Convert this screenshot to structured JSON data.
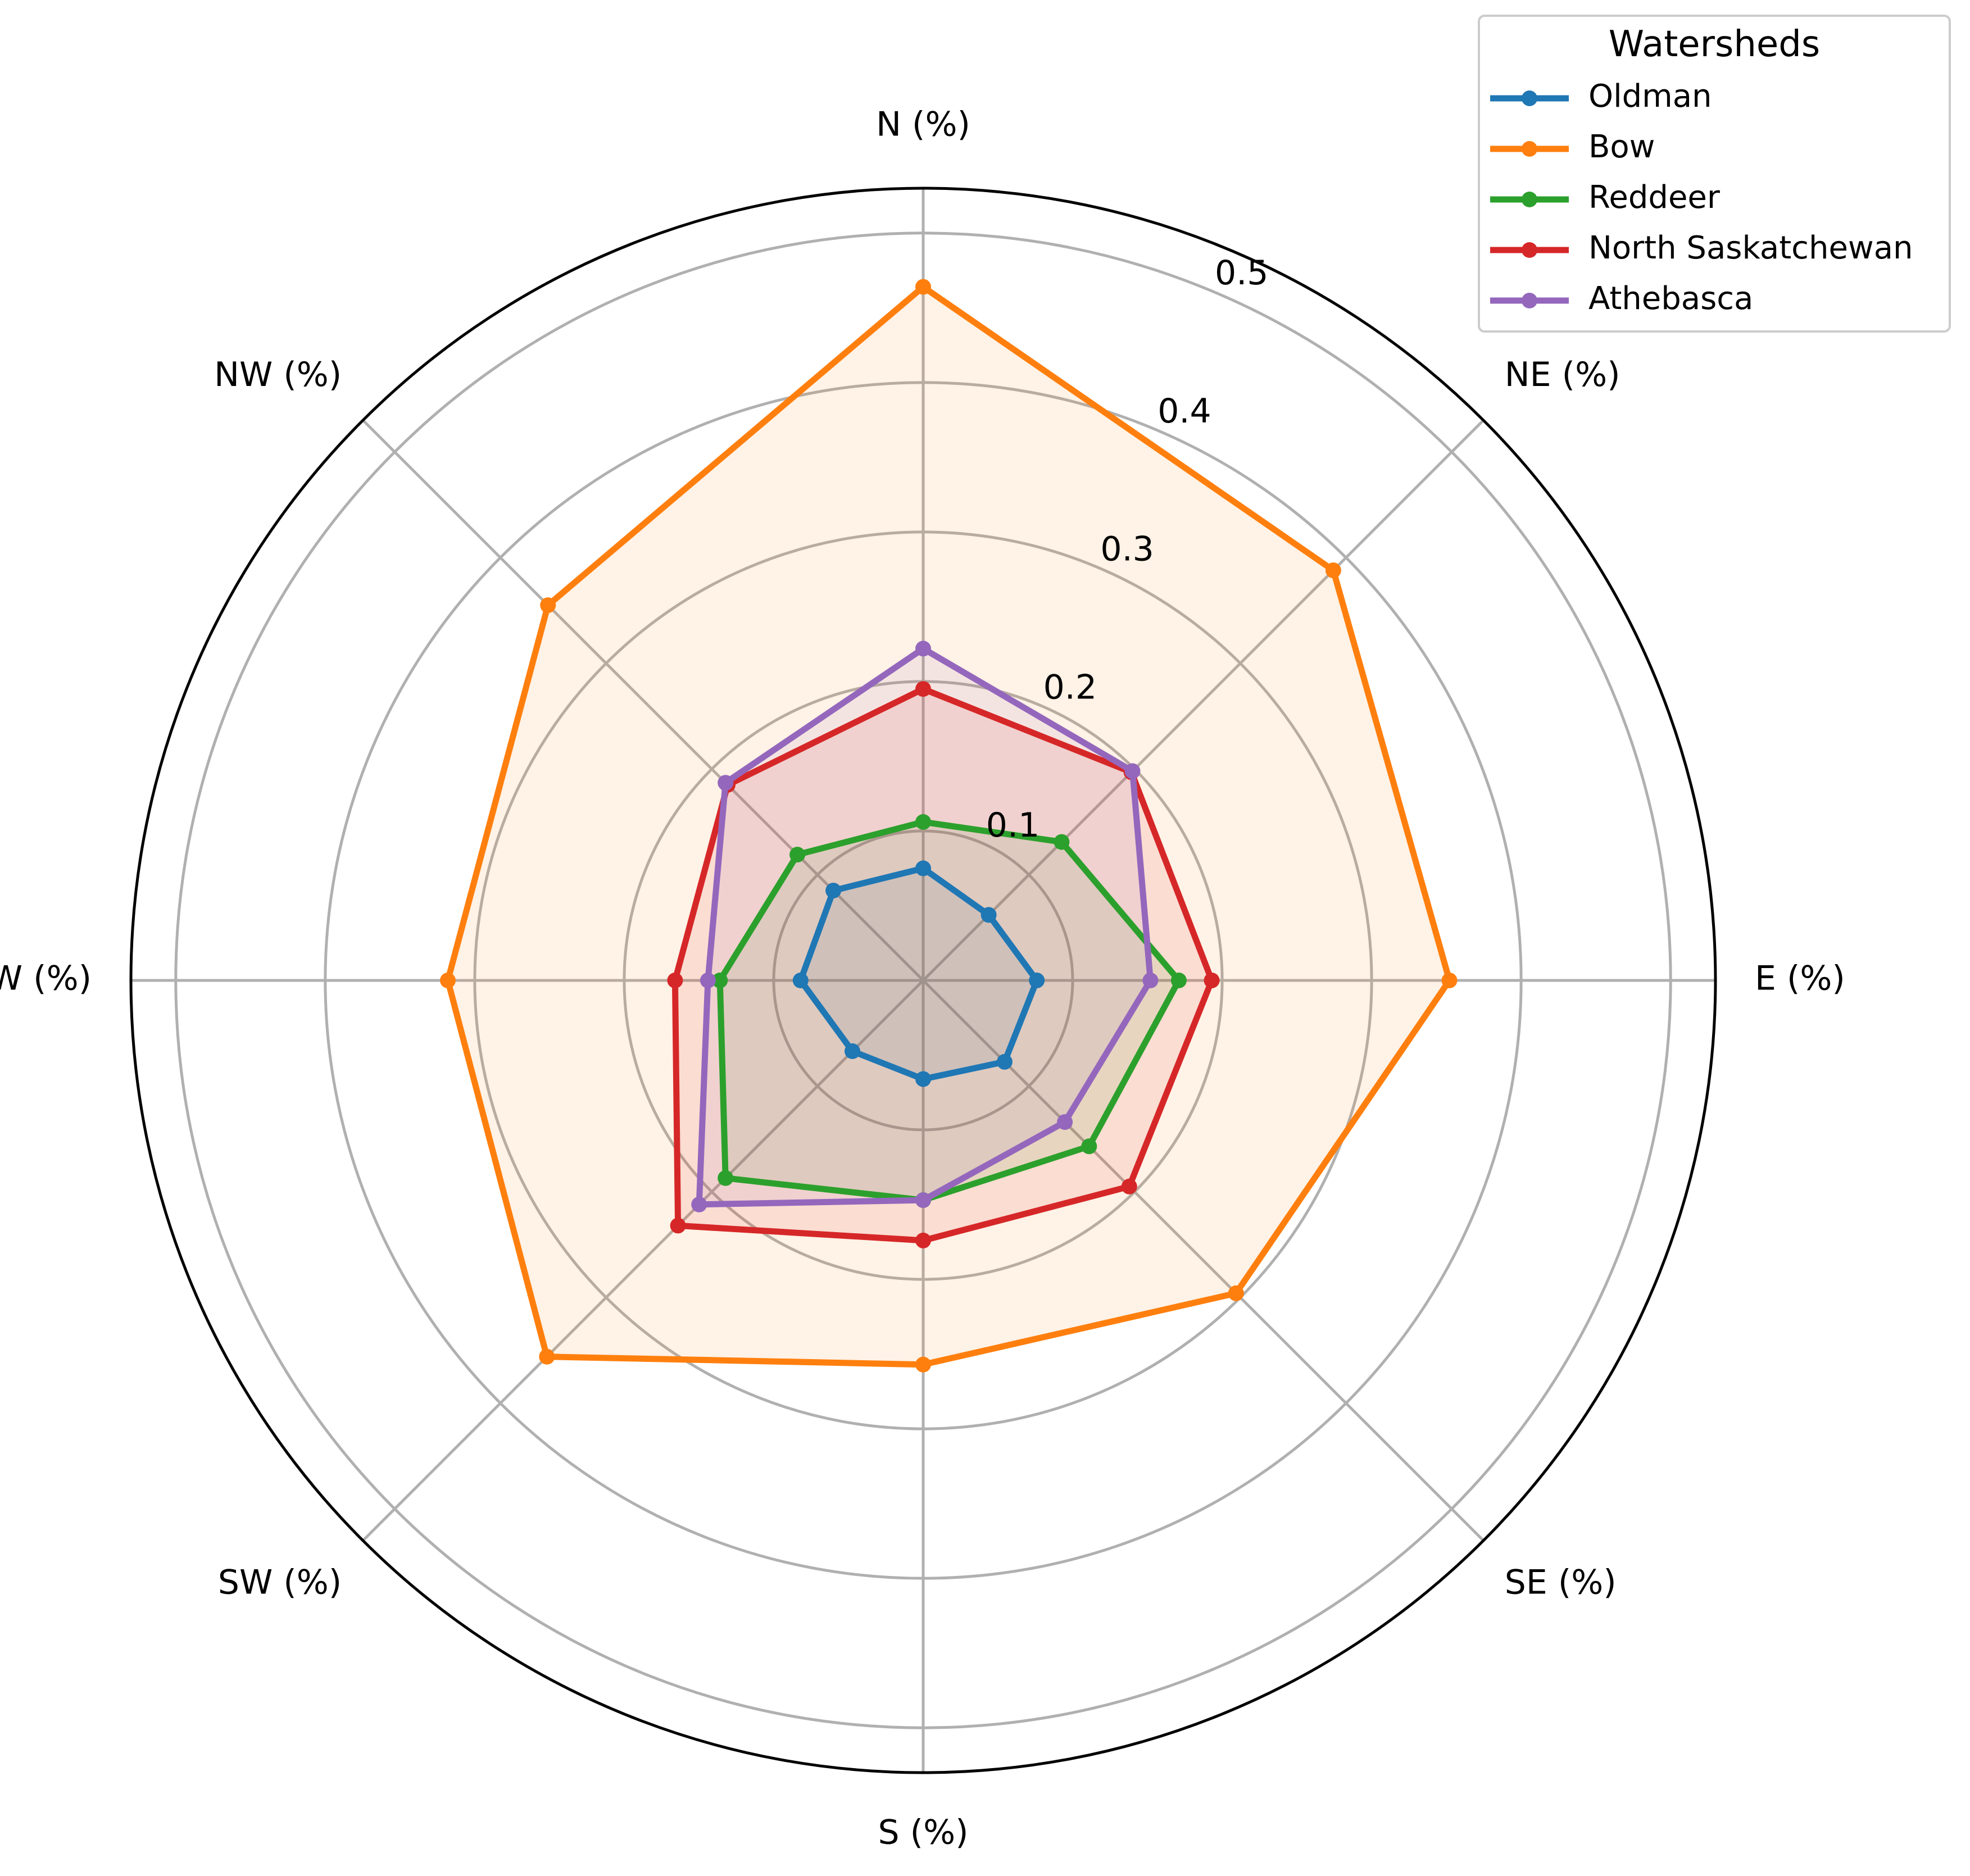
{
  "chart_data": {
    "type": "radar",
    "categories": [
      "N (%)",
      "NE (%)",
      "E (%)",
      "SE (%)",
      "S (%)",
      "SW (%)",
      "W (%)",
      "NW (%)"
    ],
    "rticks": [
      0.1,
      0.2,
      0.3,
      0.4,
      0.5
    ],
    "rtick_labels": [
      "0.1",
      "0.2",
      "0.3",
      "0.4",
      "0.5"
    ],
    "rlim": [
      0,
      0.53
    ],
    "grid": true,
    "legend": {
      "title": "Watersheds",
      "placement": "top-right"
    },
    "series": [
      {
        "name": "Oldman",
        "color": "#1f77b4",
        "values": [
          0.075,
          0.062,
          0.076,
          0.077,
          0.066,
          0.067,
          0.082,
          0.085
        ]
      },
      {
        "name": "Bow",
        "color": "#ff7f0e",
        "values": [
          0.464,
          0.388,
          0.352,
          0.296,
          0.257,
          0.356,
          0.318,
          0.355
        ]
      },
      {
        "name": "Reddeer",
        "color": "#2ca02c",
        "values": [
          0.106,
          0.131,
          0.171,
          0.157,
          0.147,
          0.187,
          0.136,
          0.119
        ]
      },
      {
        "name": "North Saskatchewan",
        "color": "#d62728",
        "values": [
          0.195,
          0.197,
          0.193,
          0.195,
          0.174,
          0.232,
          0.166,
          0.185
        ]
      },
      {
        "name": "Athebasca",
        "color": "#9467bd",
        "values": [
          0.222,
          0.198,
          0.152,
          0.134,
          0.147,
          0.212,
          0.144,
          0.187
        ]
      }
    ]
  }
}
